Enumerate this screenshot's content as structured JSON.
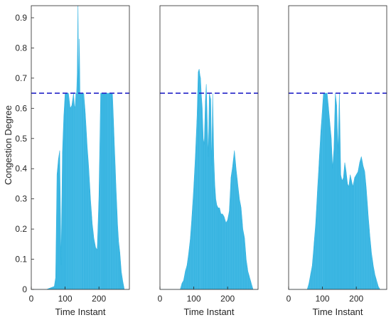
{
  "chart_data": [
    {
      "type": "area",
      "panel": "left",
      "xlabel": "Time Instant",
      "ylabel": "Congestion Degree",
      "xlim": [
        0,
        290
      ],
      "ylim": [
        0,
        0.94
      ],
      "xticks": [
        0,
        100,
        200
      ],
      "yticks": [
        0,
        0.1,
        0.2,
        0.3,
        0.4,
        0.5,
        0.6,
        0.7,
        0.8,
        0.9
      ],
      "threshold": 0.65,
      "series_color": "#35b3e0",
      "threshold_color": "#2323c8",
      "x": [
        0,
        45,
        68,
        72,
        76,
        80,
        84,
        88,
        92,
        96,
        100,
        105,
        110,
        115,
        120,
        125,
        128,
        130,
        132,
        134,
        136,
        138,
        140,
        142,
        144,
        146,
        148,
        150,
        155,
        160,
        165,
        170,
        175,
        180,
        185,
        190,
        195,
        200,
        205,
        208,
        212,
        216,
        220,
        225,
        230,
        235,
        240,
        245,
        250,
        255,
        258,
        262,
        266,
        270,
        275,
        280,
        290
      ],
      "values": [
        0,
        0,
        0.01,
        0.04,
        0.38,
        0.43,
        0.46,
        0.08,
        0.45,
        0.57,
        0.65,
        0.65,
        0.65,
        0.6,
        0.61,
        0.65,
        0.6,
        0.61,
        0.65,
        0.65,
        0.72,
        0.95,
        0.65,
        0.83,
        0.65,
        0.65,
        0.65,
        0.65,
        0.65,
        0.58,
        0.48,
        0.4,
        0.3,
        0.22,
        0.17,
        0.14,
        0.13,
        0.31,
        0.65,
        0.65,
        0.65,
        0.65,
        0.65,
        0.65,
        0.65,
        0.65,
        0.65,
        0.5,
        0.35,
        0.22,
        0.16,
        0.12,
        0.06,
        0.03,
        0,
        0,
        0
      ]
    },
    {
      "type": "area",
      "panel": "middle",
      "xlabel": "Time Instant",
      "ylabel": "",
      "xlim": [
        0,
        290
      ],
      "ylim": [
        0,
        0.94
      ],
      "xticks": [
        0,
        100,
        200
      ],
      "yticks": [],
      "threshold": 0.65,
      "series_color": "#35b3e0",
      "threshold_color": "#2323c8",
      "x": [
        0,
        60,
        65,
        70,
        75,
        80,
        85,
        90,
        95,
        100,
        105,
        110,
        113,
        116,
        118,
        120,
        122,
        125,
        128,
        131,
        134,
        137,
        140,
        143,
        146,
        150,
        153,
        156,
        159,
        162,
        165,
        168,
        172,
        176,
        180,
        185,
        190,
        195,
        200,
        205,
        210,
        215,
        220,
        225,
        230,
        235,
        240,
        245,
        250,
        255,
        260,
        265,
        270,
        275,
        280,
        290
      ],
      "values": [
        0,
        0,
        0.02,
        0.03,
        0.06,
        0.08,
        0.12,
        0.17,
        0.25,
        0.34,
        0.45,
        0.58,
        0.72,
        0.73,
        0.71,
        0.7,
        0.65,
        0.6,
        0.5,
        0.48,
        0.62,
        0.68,
        0.55,
        0.44,
        0.65,
        0.63,
        0.41,
        0.65,
        0.44,
        0.35,
        0.3,
        0.28,
        0.27,
        0.27,
        0.25,
        0.25,
        0.24,
        0.22,
        0.23,
        0.26,
        0.37,
        0.41,
        0.46,
        0.4,
        0.35,
        0.3,
        0.27,
        0.2,
        0.17,
        0.1,
        0.06,
        0.04,
        0.02,
        0,
        0,
        0
      ]
    },
    {
      "type": "area",
      "panel": "right",
      "xlabel": "Time Instant",
      "ylabel": "",
      "xlim": [
        0,
        290
      ],
      "ylim": [
        0,
        0.94
      ],
      "xticks": [
        0,
        100,
        200
      ],
      "yticks": [],
      "threshold": 0.65,
      "series_color": "#35b3e0",
      "threshold_color": "#2323c8",
      "x": [
        0,
        55,
        60,
        65,
        70,
        75,
        80,
        85,
        90,
        95,
        100,
        103,
        106,
        110,
        114,
        118,
        122,
        126,
        130,
        134,
        138,
        142,
        146,
        150,
        154,
        158,
        162,
        166,
        170,
        174,
        178,
        182,
        186,
        190,
        195,
        200,
        205,
        210,
        215,
        220,
        225,
        230,
        235,
        240,
        245,
        250,
        255,
        260,
        265,
        270,
        275,
        280,
        290
      ],
      "values": [
        0,
        0,
        0.02,
        0.05,
        0.08,
        0.15,
        0.22,
        0.32,
        0.42,
        0.52,
        0.6,
        0.65,
        0.65,
        0.65,
        0.65,
        0.6,
        0.55,
        0.5,
        0.4,
        0.47,
        0.65,
        0.61,
        0.45,
        0.65,
        0.38,
        0.36,
        0.37,
        0.42,
        0.39,
        0.35,
        0.34,
        0.38,
        0.36,
        0.34,
        0.37,
        0.38,
        0.39,
        0.42,
        0.44,
        0.41,
        0.39,
        0.33,
        0.25,
        0.18,
        0.12,
        0.08,
        0.05,
        0.03,
        0.01,
        0,
        0,
        0,
        0
      ]
    }
  ]
}
